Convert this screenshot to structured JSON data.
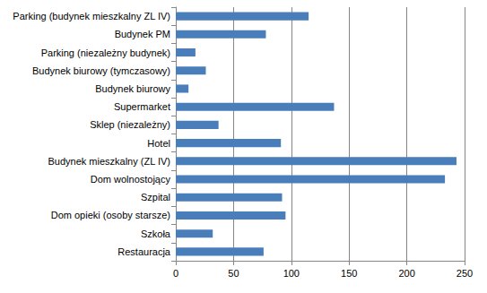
{
  "chart_data": {
    "type": "bar",
    "orientation": "horizontal",
    "categories": [
      "Parking (budynek mieszkalny ZL IV)",
      "Budynek PM",
      "Parking (niezależny budynek)",
      "Budynek biurowy (tymczasowy)",
      "Budynek biurowy",
      "Supermarket",
      "Sklep (niezależny)",
      "Hotel",
      "Budynek mieszkalny (ZL IV)",
      "Dom wolnostojący",
      "Szpital",
      "Dom opieki (osoby starsze)",
      "Szkoła",
      "Restauracja"
    ],
    "values": [
      115,
      78,
      17,
      26,
      11,
      137,
      37,
      91,
      243,
      233,
      92,
      95,
      32,
      76
    ],
    "color": "#4a7ebb",
    "xlim": [
      0,
      250
    ],
    "xticks": [
      0,
      50,
      100,
      150,
      200,
      250
    ],
    "grid": true
  }
}
